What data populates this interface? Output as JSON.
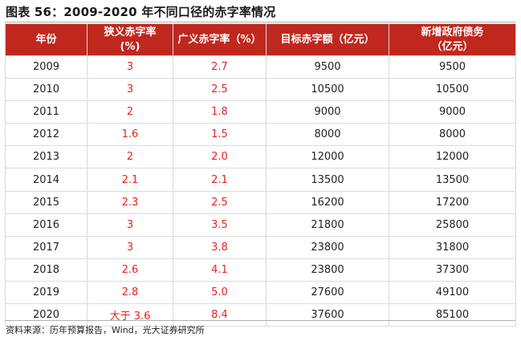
{
  "title": "图表 56：2009-2020 年不同口径的赤字率情况",
  "table": {
    "headers": [
      "年份",
      "狭义赤字率\n(%)",
      "广义赤字率（%）",
      "目标赤字额（亿元）",
      "新增政府债务\n（亿元）"
    ],
    "rows": [
      [
        "2009",
        "3",
        "2.7",
        "9500",
        "9500"
      ],
      [
        "2010",
        "3",
        "2.5",
        "10500",
        "10500"
      ],
      [
        "2011",
        "2",
        "1.8",
        "9000",
        "9000"
      ],
      [
        "2012",
        "1.6",
        "1.5",
        "8000",
        "8000"
      ],
      [
        "2013",
        "2",
        "2.0",
        "12000",
        "12000"
      ],
      [
        "2014",
        "2.1",
        "2.1",
        "13500",
        "13500"
      ],
      [
        "2015",
        "2.3",
        "2.5",
        "16200",
        "17200"
      ],
      [
        "2016",
        "3",
        "3.5",
        "21800",
        "25800"
      ],
      [
        "2017",
        "3",
        "3.8",
        "23800",
        "31800"
      ],
      [
        "2018",
        "2.6",
        "4.1",
        "23800",
        "37300"
      ],
      [
        "2019",
        "2.8",
        "5.0",
        "27600",
        "49100"
      ],
      [
        "2020",
        "大于 3.6",
        "8.4",
        "37600",
        "85100"
      ]
    ]
  },
  "source": "资料来源：历年预算报告，Wind，光大证券研究所",
  "colors": {
    "header_bg": "#c0281e",
    "accent_text": "#e8231c"
  }
}
